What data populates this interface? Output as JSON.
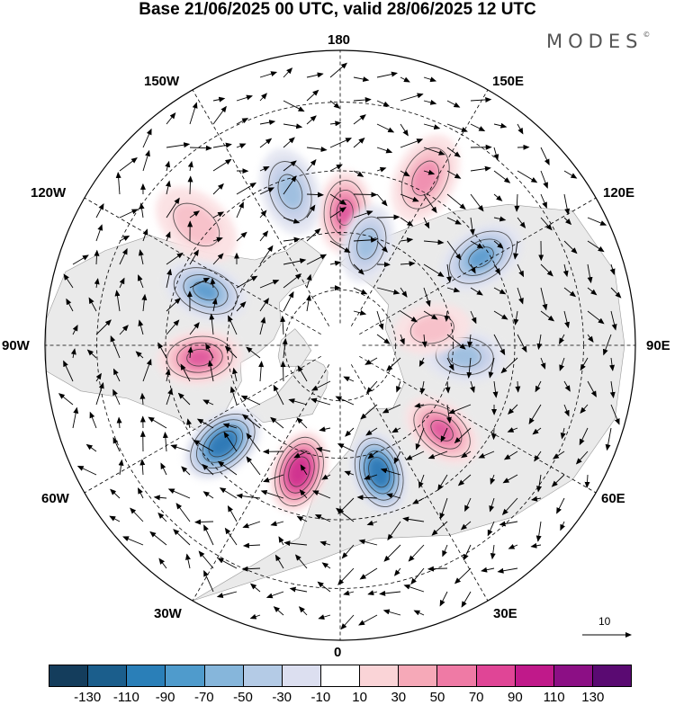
{
  "title": "Base 21/06/2025 00 UTC, valid 28/06/2025 12 UTC",
  "brand": "MODES",
  "brand_mark": "©",
  "longitude_labels": [
    {
      "text": "180"
    },
    {
      "text": "150E"
    },
    {
      "text": "120E"
    },
    {
      "text": "90E"
    },
    {
      "text": "60E"
    },
    {
      "text": "30E"
    },
    {
      "text": "0"
    },
    {
      "text": "30W"
    },
    {
      "text": "60W"
    },
    {
      "text": "90W"
    },
    {
      "text": "120W"
    },
    {
      "text": "150W"
    }
  ],
  "reference_vector": {
    "value": "10"
  },
  "colorbar": {
    "colors": [
      "#143d5c",
      "#1b5e8c",
      "#2a7fb8",
      "#4f9bcc",
      "#86b6db",
      "#b4cbe6",
      "#dcdff0",
      "#ffffff",
      "#fad4d7",
      "#f6a9b8",
      "#ef7aa5",
      "#e04596",
      "#c0198a",
      "#8c0f85",
      "#5a0a72"
    ],
    "labels": [
      "-130",
      "-110",
      "-90",
      "-70",
      "-50",
      "-30",
      "-10",
      "10",
      "30",
      "50",
      "70",
      "90",
      "110",
      "130"
    ]
  },
  "anomaly_centres": [
    {
      "lon": 178,
      "lat": 55,
      "sign": "pos",
      "level": 3
    },
    {
      "lon": 153,
      "lat": 42,
      "sign": "pos",
      "level": 2
    },
    {
      "lon": 165,
      "lat": 62,
      "sign": "neg",
      "level": 2
    },
    {
      "lon": -162,
      "lat": 48,
      "sign": "neg",
      "level": 2
    },
    {
      "lon": -130,
      "lat": 42,
      "sign": "pos",
      "level": 1
    },
    {
      "lon": -112,
      "lat": 52,
      "sign": "neg",
      "level": 3
    },
    {
      "lon": -85,
      "lat": 53,
      "sign": "pos",
      "level": 3
    },
    {
      "lon": -50,
      "lat": 50,
      "sign": "neg",
      "level": 5
    },
    {
      "lon": -18,
      "lat": 55,
      "sign": "pos",
      "level": 5
    },
    {
      "lon": 17,
      "lat": 55,
      "sign": "neg",
      "level": 5
    },
    {
      "lon": 50,
      "lat": 55,
      "sign": "pos",
      "level": 3
    },
    {
      "lon": 85,
      "lat": 57,
      "sign": "neg",
      "level": 2
    },
    {
      "lon": 100,
      "lat": 65,
      "sign": "pos",
      "level": 1
    },
    {
      "lon": 122,
      "lat": 47,
      "sign": "neg",
      "level": 3
    }
  ]
}
